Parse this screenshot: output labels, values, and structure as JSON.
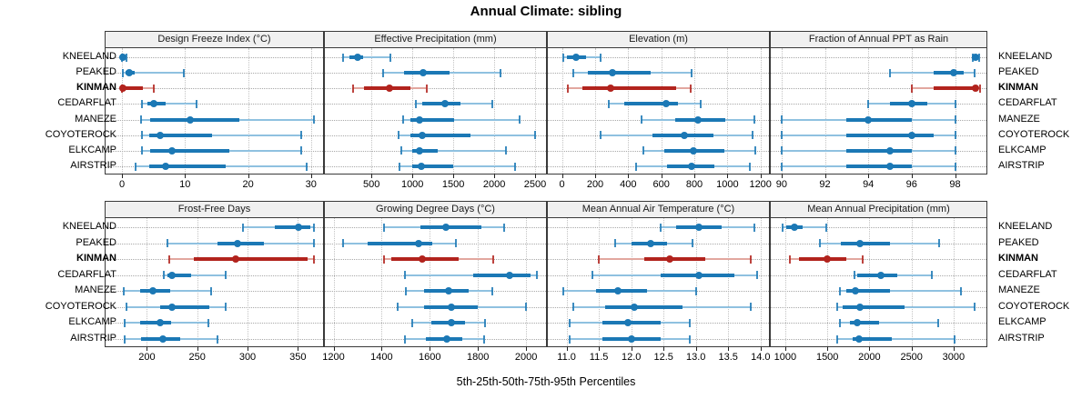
{
  "title": "Annual Climate: sibling",
  "caption": "5th-25th-50th-75th-95th Percentiles",
  "sites": [
    "KNEELAND",
    "PEAKED",
    "KINMAN",
    "CEDARFLAT",
    "MANEZE",
    "COYOTEROCK",
    "ELKCAMP",
    "AIRSTRIP"
  ],
  "highlight_site": "KINMAN",
  "colors": {
    "series_main": "#1b78b5",
    "series_light": "#8fc1e0",
    "highlight_main": "#b2231d",
    "highlight_light": "#e2a79f",
    "strip_bg": "#f0f0f0",
    "panel_border": "#3a3a3a"
  },
  "chart_data": {
    "type": "dotplot-percentiles",
    "title": "Annual Climate: sibling",
    "xlabel": "5th-25th-50th-75th-95th Percentiles",
    "percentiles": [
      5,
      25,
      50,
      75,
      95
    ],
    "legend_position": "none",
    "grid": "dotted",
    "layout": "2 rows x 4 columns, shared site y-axis; KINMAN highlighted in red",
    "panels": [
      {
        "id": "design-freeze-index",
        "title": "Design Freeze Index (°C)",
        "row": 0,
        "col": 0,
        "xmin": -2.6,
        "xmax": 31.9,
        "ticks": [
          0,
          10,
          20,
          30
        ],
        "tick_labels": [
          "0",
          "10",
          "20",
          "30"
        ],
        "values": [
          [
            0,
            0,
            0.1,
            0.3,
            0.7
          ],
          [
            0.2,
            0.5,
            1.1,
            2.0,
            9.8
          ],
          [
            0,
            0.1,
            0.2,
            3.3,
            5.0
          ],
          [
            3.1,
            4.1,
            5.1,
            6.9,
            11.9
          ],
          [
            3.0,
            4.5,
            10.8,
            18.6,
            30.5
          ],
          [
            3.1,
            4.3,
            6.0,
            14.3,
            28.5
          ],
          [
            3.2,
            4.5,
            8.0,
            17.0,
            28.5
          ],
          [
            2.1,
            4.3,
            6.9,
            16.5,
            29.3
          ]
        ]
      },
      {
        "id": "effective-precipitation",
        "title": "Effective Precipitation (mm)",
        "row": 0,
        "col": 1,
        "xmin": -70,
        "xmax": 2633,
        "ticks": [
          500,
          1000,
          1500,
          2000,
          2500
        ],
        "tick_labels": [
          "500",
          "1000",
          "1500",
          "2000",
          "2500"
        ],
        "values": [
          [
            155,
            235,
            325,
            400,
            735
          ],
          [
            645,
            900,
            1130,
            1455,
            2075
          ],
          [
            270,
            410,
            720,
            980,
            1170
          ],
          [
            1045,
            1115,
            1400,
            1585,
            1980
          ],
          [
            890,
            980,
            1085,
            1510,
            2315
          ],
          [
            835,
            980,
            1120,
            1710,
            2495
          ],
          [
            865,
            1000,
            1085,
            1310,
            2145
          ],
          [
            845,
            1000,
            1110,
            1500,
            2250
          ]
        ]
      },
      {
        "id": "elevation",
        "title": "Elevation (m)",
        "row": 0,
        "col": 2,
        "xmin": -86,
        "xmax": 1251,
        "ticks": [
          0,
          200,
          400,
          600,
          800,
          1000,
          1200
        ],
        "tick_labels": [
          "0",
          "200",
          "400",
          "600",
          "800",
          "1000",
          "1200"
        ],
        "values": [
          [
            10,
            27,
            85,
            145,
            232
          ],
          [
            70,
            155,
            305,
            535,
            785
          ],
          [
            35,
            125,
            295,
            690,
            775
          ],
          [
            285,
            375,
            630,
            700,
            840
          ],
          [
            480,
            685,
            820,
            990,
            1165
          ],
          [
            235,
            545,
            737,
            918,
            1150
          ],
          [
            490,
            620,
            795,
            980,
            1170
          ],
          [
            445,
            635,
            785,
            920,
            1135
          ]
        ]
      },
      {
        "id": "fraction-annual-ppt-rain",
        "title": "Fraction of Annual PPT as Rain",
        "row": 0,
        "col": 3,
        "xmin": 89.5,
        "xmax": 99.45,
        "ticks": [
          90,
          92,
          94,
          96,
          98
        ],
        "tick_labels": [
          "90",
          "92",
          "94",
          "96",
          "98"
        ],
        "values": [
          [
            98.8,
            98.9,
            98.95,
            99.0,
            99.1
          ],
          [
            95.0,
            97.0,
            97.95,
            98.4,
            98.9
          ],
          [
            96.0,
            97.0,
            98.95,
            99.05,
            99.15
          ],
          [
            94.0,
            95.0,
            96.0,
            96.7,
            98.0
          ],
          [
            90.0,
            93.0,
            94.0,
            96.0,
            98.0
          ],
          [
            90.0,
            93.0,
            96.0,
            97.0,
            98.0
          ],
          [
            90.0,
            93.0,
            95.0,
            96.0,
            98.0
          ],
          [
            90.0,
            93.0,
            95.0,
            96.0,
            98.0
          ]
        ]
      },
      {
        "id": "frost-free-days",
        "title": "Frost-Free Days",
        "row": 1,
        "col": 0,
        "xmin": 159,
        "xmax": 375,
        "ticks": [
          200,
          250,
          300,
          350
        ],
        "tick_labels": [
          "200",
          "250",
          "300",
          "350"
        ],
        "values": [
          [
            295,
            327,
            351,
            362,
            366
          ],
          [
            220,
            270,
            290,
            316,
            366
          ],
          [
            222,
            247,
            288,
            360,
            366
          ],
          [
            217,
            220,
            225,
            244,
            278
          ],
          [
            177,
            193,
            206,
            223,
            264
          ],
          [
            180,
            213,
            225,
            262,
            278
          ],
          [
            178,
            193,
            213,
            224,
            261
          ],
          [
            178,
            194,
            216,
            233,
            270
          ]
        ]
      },
      {
        "id": "growing-degree-days",
        "title": "Growing Degree Days (°C)",
        "row": 1,
        "col": 1,
        "xmin": 1164,
        "xmax": 2083,
        "ticks": [
          1200,
          1400,
          1600,
          1800,
          2000
        ],
        "tick_labels": [
          "1200",
          "1400",
          "1600",
          "1800",
          "2000"
        ],
        "values": [
          [
            1410,
            1560,
            1665,
            1815,
            1910
          ],
          [
            1240,
            1340,
            1555,
            1610,
            1710
          ],
          [
            1410,
            1440,
            1570,
            1720,
            1865
          ],
          [
            1495,
            1780,
            1930,
            2020,
            2045
          ],
          [
            1500,
            1575,
            1680,
            1760,
            1860
          ],
          [
            1465,
            1575,
            1690,
            1800,
            2000
          ],
          [
            1525,
            1605,
            1690,
            1745,
            1830
          ],
          [
            1495,
            1585,
            1670,
            1735,
            1825
          ]
        ]
      },
      {
        "id": "mean-annual-air-temperature",
        "title": "Mean Annual Air Temperature (°C)",
        "row": 1,
        "col": 2,
        "xmin": 10.71,
        "xmax": 14.13,
        "ticks": [
          11.0,
          11.5,
          12.0,
          12.5,
          13.0,
          13.5,
          14.0
        ],
        "tick_labels": [
          "11.0",
          "11.5",
          "12.0",
          "12.5",
          "13.0",
          "13.5",
          "14.0"
        ],
        "values": [
          [
            12.45,
            12.7,
            13.05,
            13.4,
            13.9
          ],
          [
            11.75,
            12.0,
            12.3,
            12.55,
            12.95
          ],
          [
            11.5,
            12.2,
            12.6,
            13.15,
            13.85
          ],
          [
            11.4,
            12.45,
            13.05,
            13.6,
            13.95
          ],
          [
            10.95,
            11.45,
            11.8,
            12.25,
            13.0
          ],
          [
            11.1,
            11.6,
            12.05,
            12.8,
            13.85
          ],
          [
            11.05,
            11.55,
            11.95,
            12.45,
            12.9
          ],
          [
            11.05,
            11.55,
            12.0,
            12.45,
            12.9
          ]
        ]
      },
      {
        "id": "mean-annual-precipitation",
        "title": "Mean Annual Precipitation (mm)",
        "row": 1,
        "col": 3,
        "xmin": 828,
        "xmax": 3390,
        "ticks": [
          1000,
          1500,
          2000,
          2500,
          3000
        ],
        "tick_labels": [
          "1000",
          "1500",
          "2000",
          "2500",
          "3000"
        ],
        "values": [
          [
            965,
            1010,
            1105,
            1205,
            1490
          ],
          [
            1410,
            1665,
            1885,
            2245,
            2830
          ],
          [
            1050,
            1160,
            1500,
            1725,
            1915
          ],
          [
            1825,
            1855,
            2135,
            2330,
            2740
          ],
          [
            1650,
            1720,
            1830,
            2240,
            3090
          ],
          [
            1615,
            1685,
            1885,
            2420,
            3250
          ],
          [
            1645,
            1770,
            1850,
            2110,
            2815
          ],
          [
            1615,
            1795,
            1880,
            2260,
            3015
          ]
        ]
      }
    ]
  }
}
